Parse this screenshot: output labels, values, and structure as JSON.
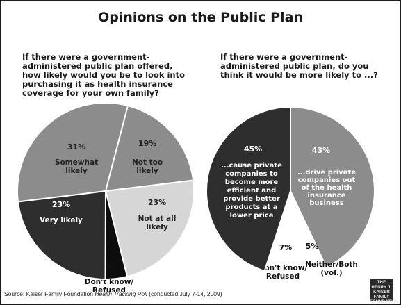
{
  "title": "Opinions on the Public Plan",
  "source": {
    "prefix": "Source: Kaiser Family Foundation ",
    "italic": "Health Tracking Poll",
    "suffix": " (conducted July 7-14, 2009)"
  },
  "logo": {
    "line1": "THE HENRY J.",
    "line2": "KAISER",
    "line3": "FAMILY",
    "line4": "FOUNDATION"
  },
  "colors": {
    "dark": "#2e2e2e",
    "medium": "#8c8c8c",
    "light": "#d6d6d6",
    "black": "#0d0d0d",
    "white": "#ffffff"
  },
  "chart_data": [
    {
      "type": "pie",
      "title": "If there were a government-administered public plan offered, how likely would you be to look into purchasing it as health insurance coverage for your own family?",
      "slices": [
        {
          "label": "Somewhat likely",
          "value": 31,
          "display": "31%",
          "lines": [
            "Somewhat",
            "likely"
          ],
          "color": "#8c8c8c"
        },
        {
          "label": "Not too likely",
          "value": 19,
          "display": "19%",
          "lines": [
            "Not too",
            "likely"
          ],
          "color": "#8c8c8c"
        },
        {
          "label": "Not at all likely",
          "value": 23,
          "display": "23%",
          "lines": [
            "Not at all",
            "likely"
          ],
          "color": "#d6d6d6"
        },
        {
          "label": "Don't know/ Refused",
          "value": 4,
          "display": "4%",
          "lines": [
            "Don't know/",
            "Refused"
          ],
          "color": "#0d0d0d"
        },
        {
          "label": "Very likely",
          "value": 23,
          "display": "23%",
          "lines": [
            "Very likely"
          ],
          "color": "#2e2e2e"
        }
      ]
    },
    {
      "type": "pie",
      "title": "If there were a government-administered public plan, do you think it would be more likely to ...?",
      "slices": [
        {
          "label": "...drive private companies out of the health insurance business",
          "value": 43,
          "display": "43%",
          "lines": [
            "...drive private",
            "companies out",
            "of the health",
            "insurance",
            "business"
          ],
          "color": "#8c8c8c"
        },
        {
          "label": "Neither/Both (vol.)",
          "value": 5,
          "display": "5%",
          "lines": [
            "Neither/Both",
            "(vol.)"
          ],
          "color": "#ffffff"
        },
        {
          "label": "Don't know/ Refused",
          "value": 7,
          "display": "7%",
          "lines": [
            "Don't know/",
            "Refused"
          ],
          "color": "#ffffff"
        },
        {
          "label": "...cause private companies to become more efficient and provide better products at a lower price",
          "value": 45,
          "display": "45%",
          "lines": [
            "...cause private",
            "companies to",
            "become more",
            "efficient and",
            "provide better",
            "products at a",
            "lower price"
          ],
          "color": "#2e2e2e"
        }
      ]
    }
  ]
}
